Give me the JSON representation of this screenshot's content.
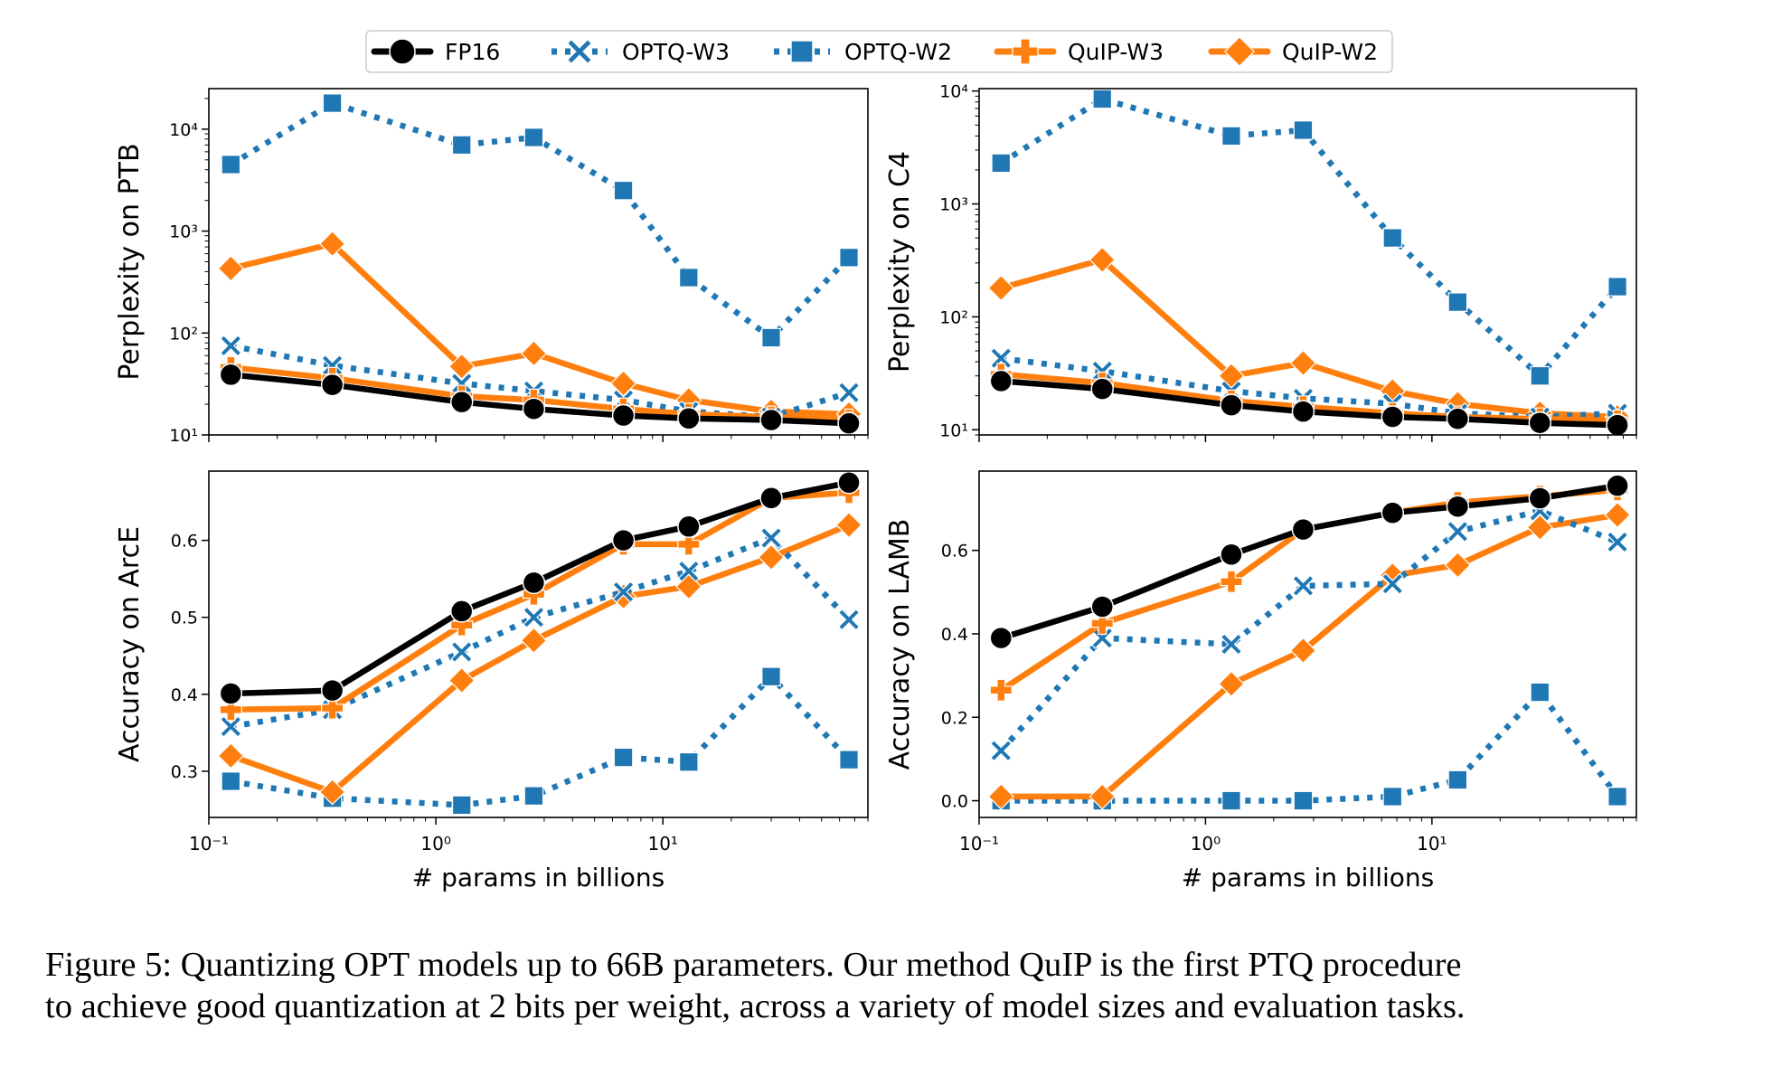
{
  "legend": {
    "entries": [
      {
        "label": "FP16",
        "color": "#000000",
        "marker": "circle",
        "dash": "solid"
      },
      {
        "label": "OPTQ-W3",
        "color": "#1f77b4",
        "marker": "x",
        "dash": "dotted"
      },
      {
        "label": "OPTQ-W2",
        "color": "#1f77b4",
        "marker": "square",
        "dash": "dotted"
      },
      {
        "label": "QuIP-W3",
        "color": "#ff7f0e",
        "marker": "plus",
        "dash": "solid"
      },
      {
        "label": "QuIP-W2",
        "color": "#ff7f0e",
        "marker": "diamond",
        "dash": "solid"
      }
    ]
  },
  "caption": {
    "line1": "Figure 5:  Quantizing OPT models up to 66B parameters. Our method QuIP is the first PTQ procedure",
    "line2": "to achieve good quantization at 2 bits per weight, across a variety of model sizes and evaluation tasks."
  },
  "chart_data": [
    {
      "type": "line",
      "ylabel": "Perplexity on PTB",
      "xlabel": "",
      "xscale": "log",
      "yscale": "log",
      "xlim": [
        0.1,
        80
      ],
      "ylim": [
        10,
        25000
      ],
      "yticks": [
        {
          "v": 10,
          "label": "10¹"
        },
        {
          "v": 100,
          "label": "10²"
        },
        {
          "v": 1000,
          "label": "10³"
        },
        {
          "v": 10000,
          "label": "10⁴"
        }
      ],
      "xticks": [],
      "x": [
        0.125,
        0.35,
        1.3,
        2.7,
        6.7,
        13,
        30,
        66
      ],
      "series": [
        {
          "name": "OPTQ-W2",
          "values": [
            4500,
            18000,
            7000,
            8300,
            2500,
            350,
            90,
            550
          ]
        },
        {
          "name": "QuIP-W2",
          "values": [
            430,
            750,
            47,
            63,
            32,
            22,
            17,
            16
          ]
        },
        {
          "name": "OPTQ-W3",
          "values": [
            75,
            48,
            32,
            27,
            22,
            17,
            15,
            26
          ]
        },
        {
          "name": "QuIP-W3",
          "values": [
            46,
            36,
            24,
            22,
            18,
            16,
            15,
            14
          ]
        },
        {
          "name": "FP16",
          "values": [
            39,
            31,
            21,
            18,
            15.5,
            14.5,
            14,
            13
          ]
        }
      ]
    },
    {
      "type": "line",
      "ylabel": "Perplexity on C4",
      "xlabel": "",
      "xscale": "log",
      "yscale": "log",
      "xlim": [
        0.1,
        80
      ],
      "ylim": [
        9,
        10500
      ],
      "yticks": [
        {
          "v": 10,
          "label": "10¹"
        },
        {
          "v": 100,
          "label": "10²"
        },
        {
          "v": 1000,
          "label": "10³"
        },
        {
          "v": 10000,
          "label": "10⁴"
        }
      ],
      "xticks": [],
      "x": [
        0.125,
        0.35,
        1.3,
        2.7,
        6.7,
        13,
        30,
        66
      ],
      "series": [
        {
          "name": "OPTQ-W2",
          "values": [
            2300,
            8500,
            4000,
            4500,
            500,
            135,
            30,
            185
          ]
        },
        {
          "name": "QuIP-W2",
          "values": [
            180,
            320,
            30,
            39,
            22,
            17,
            14,
            13
          ]
        },
        {
          "name": "OPTQ-W3",
          "values": [
            43,
            33,
            22,
            19,
            17,
            14,
            13,
            14
          ]
        },
        {
          "name": "QuIP-W3",
          "values": [
            31,
            26,
            18,
            16,
            14,
            13,
            12.5,
            12
          ]
        },
        {
          "name": "FP16",
          "values": [
            27,
            23,
            16.5,
            14.5,
            13,
            12.5,
            11.5,
            11
          ]
        }
      ]
    },
    {
      "type": "line",
      "ylabel": "Accuracy on ArcE",
      "xlabel": "# params in billions",
      "xscale": "log",
      "yscale": "linear",
      "xlim": [
        0.1,
        80
      ],
      "ylim": [
        0.24,
        0.69
      ],
      "yticks": [
        {
          "v": 0.3,
          "label": "0.3"
        },
        {
          "v": 0.4,
          "label": "0.4"
        },
        {
          "v": 0.5,
          "label": "0.5"
        },
        {
          "v": 0.6,
          "label": "0.6"
        }
      ],
      "xticks": [
        {
          "v": 0.1,
          "label": "10⁻¹"
        },
        {
          "v": 1,
          "label": "10⁰"
        },
        {
          "v": 10,
          "label": "10¹"
        }
      ],
      "x": [
        0.125,
        0.35,
        1.3,
        2.7,
        6.7,
        13,
        30,
        66
      ],
      "series": [
        {
          "name": "OPTQ-W2",
          "values": [
            0.287,
            0.265,
            0.256,
            0.268,
            0.318,
            0.312,
            0.423,
            0.315
          ]
        },
        {
          "name": "QuIP-W2",
          "values": [
            0.32,
            0.273,
            0.418,
            0.47,
            0.527,
            0.54,
            0.578,
            0.62
          ]
        },
        {
          "name": "OPTQ-W3",
          "values": [
            0.358,
            0.38,
            0.455,
            0.5,
            0.533,
            0.56,
            0.603,
            0.497
          ]
        },
        {
          "name": "QuIP-W3",
          "values": [
            0.38,
            0.382,
            0.49,
            0.53,
            0.595,
            0.595,
            0.655,
            0.662
          ]
        },
        {
          "name": "FP16",
          "values": [
            0.401,
            0.405,
            0.508,
            0.545,
            0.6,
            0.618,
            0.655,
            0.675
          ]
        }
      ]
    },
    {
      "type": "line",
      "ylabel": "Accuracy on LAMB",
      "xlabel": "# params in billions",
      "xscale": "log",
      "yscale": "linear",
      "xlim": [
        0.1,
        80
      ],
      "ylim": [
        -0.04,
        0.79
      ],
      "yticks": [
        {
          "v": 0.0,
          "label": "0.0"
        },
        {
          "v": 0.2,
          "label": "0.2"
        },
        {
          "v": 0.4,
          "label": "0.4"
        },
        {
          "v": 0.6,
          "label": "0.6"
        }
      ],
      "xticks": [
        {
          "v": 0.1,
          "label": "10⁻¹"
        },
        {
          "v": 1,
          "label": "10⁰"
        },
        {
          "v": 10,
          "label": "10¹"
        }
      ],
      "x": [
        0.125,
        0.35,
        1.3,
        2.7,
        6.7,
        13,
        30,
        66
      ],
      "series": [
        {
          "name": "OPTQ-W2",
          "values": [
            0.0,
            0.0,
            0.0,
            0.0,
            0.01,
            0.05,
            0.26,
            0.01
          ]
        },
        {
          "name": "QuIP-W2",
          "values": [
            0.01,
            0.01,
            0.28,
            0.36,
            0.54,
            0.565,
            0.655,
            0.685
          ]
        },
        {
          "name": "OPTQ-W3",
          "values": [
            0.12,
            0.39,
            0.375,
            0.515,
            0.52,
            0.645,
            0.695,
            0.62
          ]
        },
        {
          "name": "QuIP-W3",
          "values": [
            0.265,
            0.425,
            0.525,
            0.65,
            0.69,
            0.715,
            0.73,
            0.745
          ]
        },
        {
          "name": "FP16",
          "values": [
            0.39,
            0.465,
            0.59,
            0.65,
            0.69,
            0.705,
            0.725,
            0.755
          ]
        }
      ]
    }
  ]
}
